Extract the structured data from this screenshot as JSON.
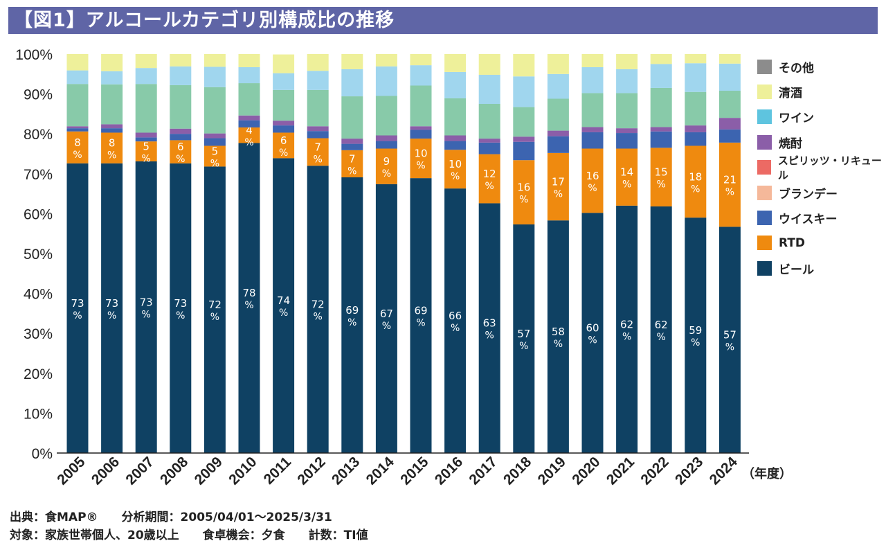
{
  "title": "【図1】アルコールカテゴリ別構成比の推移",
  "chart_data": {
    "type": "bar",
    "stacked": true,
    "categories": [
      "2005",
      "2006",
      "2007",
      "2008",
      "2009",
      "2010",
      "2011",
      "2012",
      "2013",
      "2014",
      "2015",
      "2016",
      "2017",
      "2018",
      "2019",
      "2020",
      "2021",
      "2022",
      "2023",
      "2024"
    ],
    "x_unit_label": "（年度）",
    "ylim": [
      0,
      100
    ],
    "yticks": [
      "0%",
      "10%",
      "20%",
      "30%",
      "40%",
      "50%",
      "60%",
      "70%",
      "80%",
      "90%",
      "100%"
    ],
    "grid": false,
    "legend_placement": "right",
    "legend": [
      {
        "name": "その他",
        "color": "#8c8c8c"
      },
      {
        "name": "清酒",
        "color": "#eef09a"
      },
      {
        "name": "ワイン",
        "color": "#5ec4df"
      },
      {
        "name": "焼酎",
        "color": "#8b5ea8"
      },
      {
        "name": "スピリッツ・リキュール",
        "color": "#ec6a64"
      },
      {
        "name": "ブランデー",
        "color": "#f5b89a"
      },
      {
        "name": "ウイスキー",
        "color": "#3c64b0"
      },
      {
        "name": "RTD",
        "color": "#ef8a0f"
      },
      {
        "name": "ビール",
        "color": "#0f4163"
      }
    ],
    "series": [
      {
        "name": "ビール",
        "color": "#0f4163",
        "label_color": "#ffffff",
        "values": [
          72.6,
          72.6,
          73.1,
          72.6,
          71.8,
          77.7,
          73.9,
          72.0,
          69.1,
          67.4,
          68.9,
          66.3,
          62.6,
          57.3,
          58.3,
          60.2,
          62.0,
          61.8,
          59.0,
          56.7
        ],
        "labels": [
          "73",
          "73",
          "73",
          "73",
          "72",
          "78",
          "74",
          "72",
          "69",
          "67",
          "69",
          "66",
          "63",
          "57",
          "58",
          "60",
          "62",
          "62",
          "59",
          "57"
        ]
      },
      {
        "name": "RTD",
        "color": "#ef8a0f",
        "label_color": "#ffffff",
        "values": [
          8.0,
          7.7,
          5.0,
          5.8,
          5.2,
          3.9,
          6.4,
          6.9,
          6.8,
          8.9,
          9.9,
          9.7,
          12.3,
          16.1,
          16.9,
          16.1,
          14.3,
          14.7,
          18.0,
          21.1
        ],
        "labels": [
          "8",
          "8",
          "5",
          "6",
          "5",
          "4",
          "6",
          "7",
          "7",
          "9",
          "10",
          "10",
          "12",
          "16",
          "17",
          "16",
          "14",
          "15",
          "18",
          "21"
        ]
      },
      {
        "name": "ウイスキー",
        "color": "#3c64b0",
        "values": [
          0.8,
          1.1,
          1.0,
          1.6,
          1.9,
          1.8,
          1.8,
          1.8,
          1.6,
          1.9,
          2.2,
          2.2,
          2.9,
          4.6,
          4.2,
          4.1,
          3.9,
          4.1,
          3.4,
          3.3
        ]
      },
      {
        "name": "焼酎",
        "color": "#8b5ea8",
        "values": [
          0.5,
          1.0,
          1.2,
          1.3,
          1.2,
          1.2,
          1.2,
          1.2,
          1.3,
          1.4,
          0.9,
          1.4,
          1.0,
          1.3,
          1.4,
          1.3,
          1.2,
          1.1,
          1.7,
          2.9
        ]
      },
      {
        "color": "#88caa9",
        "values": [
          10.6,
          10.0,
          12.2,
          10.9,
          11.6,
          8.1,
          7.7,
          9.1,
          10.6,
          9.9,
          10.2,
          9.3,
          8.7,
          7.4,
          8.0,
          8.5,
          8.8,
          9.8,
          8.4,
          6.8
        ]
      },
      {
        "name": "ワイン",
        "color": "#a0d6ee",
        "values": [
          3.4,
          3.3,
          4.0,
          4.7,
          5.1,
          4.0,
          4.2,
          4.8,
          6.8,
          7.4,
          5.1,
          6.6,
          7.3,
          7.7,
          6.2,
          6.5,
          6.0,
          6.0,
          7.2,
          6.8
        ]
      },
      {
        "name": "清酒",
        "color": "#eef09a",
        "values": [
          4.1,
          4.3,
          3.5,
          3.2,
          3.2,
          3.3,
          4.7,
          4.2,
          3.8,
          3.1,
          2.8,
          4.5,
          5.2,
          5.6,
          5.0,
          3.3,
          3.8,
          2.5,
          2.3,
          2.4
        ]
      }
    ]
  },
  "footer": {
    "line1": "出典：食MAP®　　分析期間：2005/04/01～2025/3/31",
    "line2": "対象：家族世帯個人、20歳以上　　食卓機会：夕食　　計数：TI値"
  }
}
